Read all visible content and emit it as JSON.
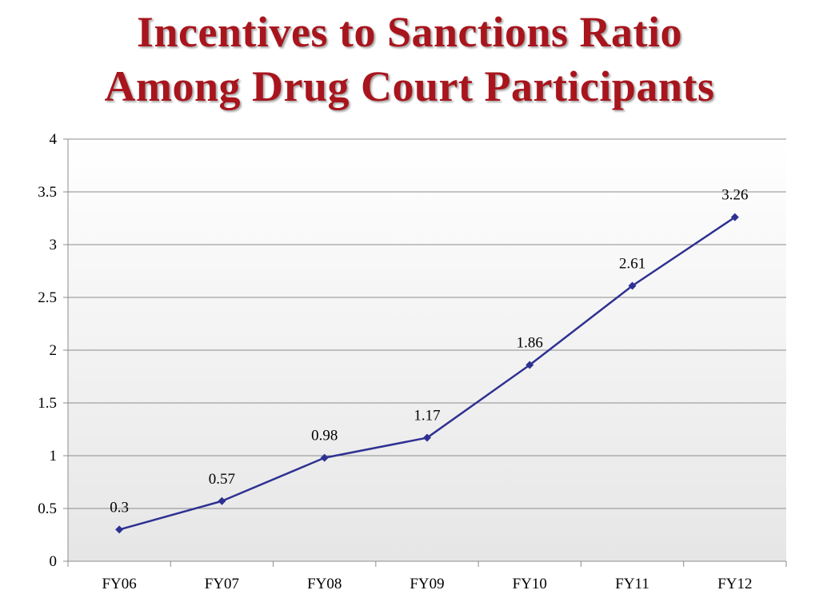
{
  "slide": {
    "title_line1": "Incentives to Sanctions Ratio",
    "title_line2": "Among Drug Court Participants"
  },
  "colors": {
    "title": "#a8151d",
    "series_line": "#2e3192",
    "gridline": "#8c8c8c",
    "plot_gradient_top": "#ffffff",
    "plot_gradient_bottom": "#e6e6e6"
  },
  "chart_data": {
    "type": "line",
    "title": "",
    "xlabel": "",
    "ylabel": "",
    "categories": [
      "FY06",
      "FY07",
      "FY08",
      "FY09",
      "FY10",
      "FY11",
      "FY12"
    ],
    "series": [
      {
        "values": [
          0.3,
          0.57,
          0.98,
          1.17,
          1.86,
          2.61,
          3.26
        ],
        "marker": "diamond"
      }
    ],
    "data_labels": [
      "0.3",
      "0.57",
      "0.98",
      "1.17",
      "1.86",
      "2.61",
      "3.26"
    ],
    "ylim": [
      0,
      4
    ],
    "ytick_labels": [
      "0",
      "0.5",
      "1",
      "1.5",
      "2",
      "2.5",
      "3",
      "3.5",
      "4"
    ],
    "grid": true,
    "legend": "none"
  }
}
